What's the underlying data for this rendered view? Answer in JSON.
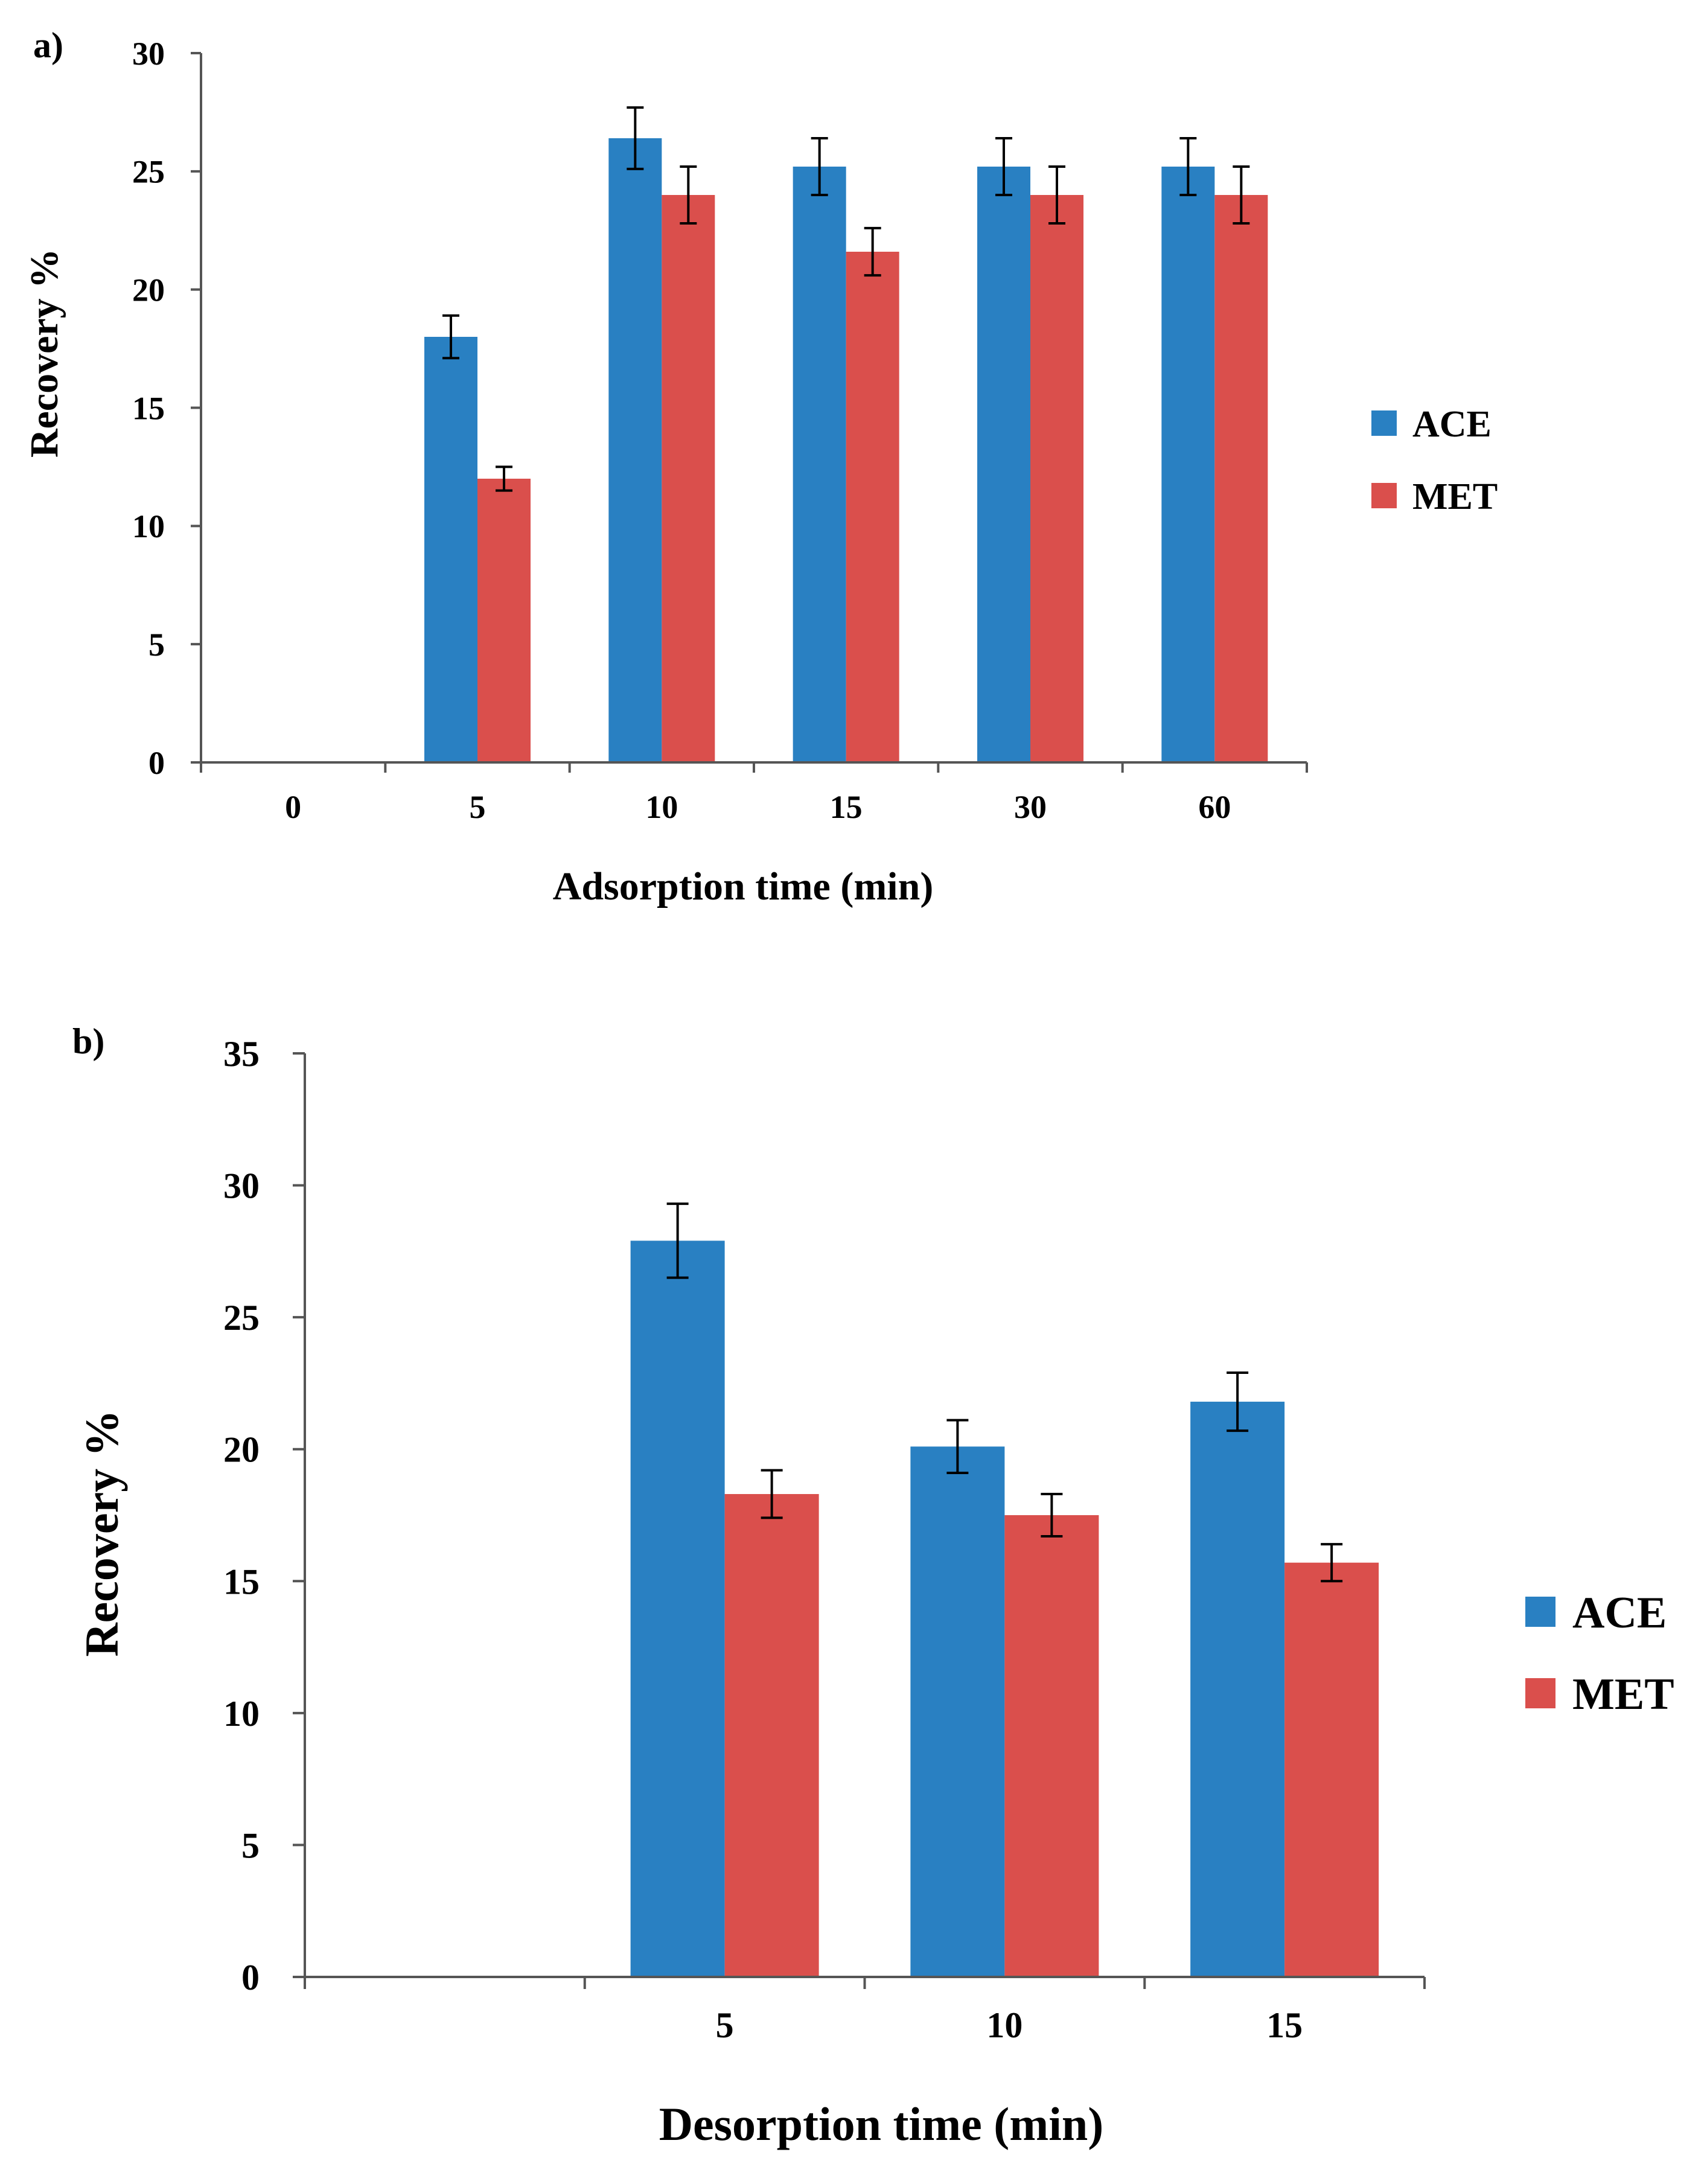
{
  "chart_data": [
    {
      "type": "bar",
      "panel_label": "a)",
      "title": "",
      "xlabel": "Adsorption time (min)",
      "ylabel": "Recovery %",
      "categories": [
        "0",
        "5",
        "10",
        "15",
        "30",
        "60"
      ],
      "ylim": [
        0,
        30
      ],
      "yticks": [
        "0",
        "5",
        "10",
        "15",
        "20",
        "25",
        "30"
      ],
      "grid": false,
      "legend_position": "right",
      "series": [
        {
          "name": "ACE",
          "color": "#2980C2",
          "values": [
            0,
            18.0,
            26.4,
            25.2,
            25.2,
            25.2
          ],
          "errors": [
            0,
            0.9,
            1.3,
            1.2,
            1.2,
            1.2
          ]
        },
        {
          "name": "MET",
          "color": "#DA4F4C",
          "values": [
            0,
            12.0,
            24.0,
            21.6,
            24.0,
            24.0
          ],
          "errors": [
            0,
            0.5,
            1.2,
            1.0,
            1.2,
            1.2
          ]
        }
      ]
    },
    {
      "type": "bar",
      "panel_label": "b)",
      "title": "",
      "xlabel": "Desorption time (min)",
      "ylabel": "Recovery %",
      "categories": [
        "",
        "5",
        "10",
        "15"
      ],
      "ylim": [
        0,
        35
      ],
      "yticks": [
        "0",
        "5",
        "10",
        "15",
        "20",
        "25",
        "30",
        "35"
      ],
      "grid": false,
      "legend_position": "right",
      "series": [
        {
          "name": "ACE",
          "color": "#2980C2",
          "values": [
            0,
            27.9,
            20.1,
            21.8
          ],
          "errors": [
            0,
            1.4,
            1.0,
            1.1
          ]
        },
        {
          "name": "MET",
          "color": "#DA4F4C",
          "values": [
            0,
            18.3,
            17.5,
            15.7
          ],
          "errors": [
            0,
            0.9,
            0.8,
            0.7
          ]
        }
      ]
    }
  ]
}
